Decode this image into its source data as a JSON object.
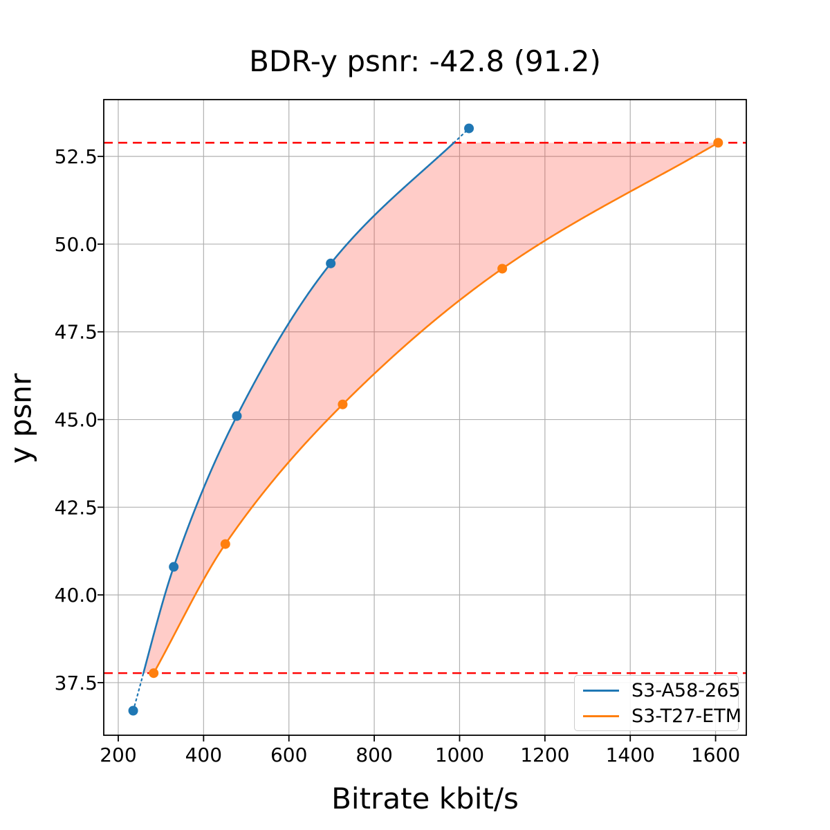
{
  "title": "BDR-y psnr: -42.8 (91.2)",
  "chart_data": {
    "type": "line",
    "title": "BDR-y psnr: -42.8 (91.2)",
    "xlabel": "Bitrate kbit/s",
    "ylabel": "y psnr",
    "xlim": [
      166,
      1672
    ],
    "ylim": [
      36.0,
      54.12
    ],
    "grid": true,
    "legend_position": "lower right",
    "xticks": [
      200,
      400,
      600,
      800,
      1000,
      1200,
      1400,
      1600
    ],
    "xtick_labels": [
      "200",
      "400",
      "600",
      "800",
      "1000",
      "1200",
      "1400",
      "1600"
    ],
    "yticks": [
      37.5,
      40.0,
      42.5,
      45.0,
      47.5,
      50.0,
      52.5
    ],
    "ytick_labels": [
      "37.5",
      "40.0",
      "42.5",
      "45.0",
      "47.5",
      "50.0",
      "52.5"
    ],
    "series": [
      {
        "name": "S3-A58-265",
        "color": "#1f77b4",
        "x": [
          235,
          330,
          478,
          698,
          1022
        ],
        "y": [
          36.7,
          40.8,
          45.1,
          49.45,
          53.3
        ]
      },
      {
        "name": "S3-T27-ETM",
        "color": "#ff7f0e",
        "x": [
          283,
          451,
          726,
          1100,
          1606
        ],
        "y": [
          37.77,
          41.45,
          45.43,
          49.3,
          52.89
        ]
      }
    ],
    "overlap_lines": {
      "color": "#ff0000",
      "y_low": 37.77,
      "y_high": 52.89,
      "style": "dashed"
    },
    "fill_between": {
      "color": "rgba(255,65,50,0.27)",
      "between": [
        "S3-A58-265",
        "S3-T27-ETM"
      ],
      "clipped_to": [
        37.77,
        52.89
      ]
    },
    "styles": {
      "grid_color": "#b0b0b0",
      "spine_color": "#000000",
      "background": "#ffffff",
      "out_of_range_linestyle": "dotted"
    }
  },
  "legend": {
    "entries": [
      {
        "label": "S3-A58-265",
        "color": "#1f77b4"
      },
      {
        "label": "S3-T27-ETM",
        "color": "#ff7f0e"
      }
    ]
  }
}
